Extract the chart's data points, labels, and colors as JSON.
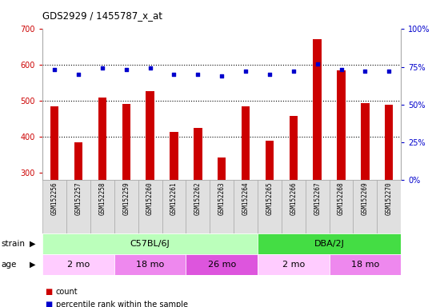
{
  "title": "GDS2929 / 1455787_x_at",
  "samples": [
    "GSM152256",
    "GSM152257",
    "GSM152258",
    "GSM152259",
    "GSM152260",
    "GSM152261",
    "GSM152262",
    "GSM152263",
    "GSM152264",
    "GSM152265",
    "GSM152266",
    "GSM152267",
    "GSM152268",
    "GSM152269",
    "GSM152270"
  ],
  "counts": [
    485,
    385,
    510,
    492,
    528,
    413,
    424,
    342,
    484,
    388,
    458,
    672,
    585,
    493,
    490
  ],
  "percentiles": [
    73,
    70,
    74,
    73,
    74,
    70,
    70,
    69,
    72,
    70,
    72,
    77,
    73,
    72,
    72
  ],
  "ylim_left": [
    280,
    700
  ],
  "ylim_right": [
    0,
    100
  ],
  "yticks_left": [
    300,
    400,
    500,
    600,
    700
  ],
  "yticks_right": [
    0,
    25,
    50,
    75,
    100
  ],
  "bar_color": "#cc0000",
  "dot_color": "#0000cc",
  "strain_groups": [
    {
      "label": "C57BL/6J",
      "start": 0,
      "end": 9,
      "color": "#bbffbb"
    },
    {
      "label": "DBA/2J",
      "start": 9,
      "end": 15,
      "color": "#44dd44"
    }
  ],
  "age_groups": [
    {
      "label": "2 mo",
      "start": 0,
      "end": 3,
      "color": "#ffccff"
    },
    {
      "label": "18 mo",
      "start": 3,
      "end": 6,
      "color": "#ee88ee"
    },
    {
      "label": "26 mo",
      "start": 6,
      "end": 9,
      "color": "#dd55dd"
    },
    {
      "label": "2 mo",
      "start": 9,
      "end": 12,
      "color": "#ffccff"
    },
    {
      "label": "18 mo",
      "start": 12,
      "end": 15,
      "color": "#ee88ee"
    }
  ],
  "strain_label": "strain",
  "age_label": "age",
  "legend_count_label": "count",
  "legend_pct_label": "percentile rank within the sample",
  "tick_label_color_left": "#cc0000",
  "tick_label_color_right": "#0000cc",
  "gridlines": [
    400,
    500,
    600
  ],
  "fig_width": 5.6,
  "fig_height": 3.84,
  "dpi": 100
}
